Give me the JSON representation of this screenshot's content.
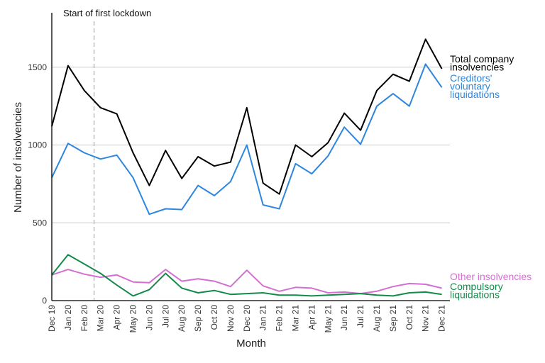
{
  "chart_data": {
    "type": "line",
    "xlabel": "Month",
    "ylabel": "Number of insolvencies",
    "ylim": [
      0,
      1850
    ],
    "yticks": [
      0,
      500,
      1000,
      1500
    ],
    "grid": "horizontal",
    "annotation": {
      "text": "Start of first lockdown",
      "x_category": "Feb 20 / Mar 20"
    },
    "categories": [
      "Dec 19",
      "Jan 20",
      "Feb 20",
      "Mar 20",
      "Apr 20",
      "May 20",
      "Jun 20",
      "Jul 20",
      "Aug 20",
      "Sep 20",
      "Oct 20",
      "Nov 20",
      "Dec 20",
      "Jan 21",
      "Feb 21",
      "Mar 21",
      "Apr 21",
      "May 21",
      "Jun 21",
      "Jul 21",
      "Aug 21",
      "Sep 21",
      "Oct 21",
      "Nov 21",
      "Dec 21"
    ],
    "series": [
      {
        "name": "Total company insolvencies",
        "label_lines": [
          "Total company",
          "insolvencies"
        ],
        "color": "#000000",
        "values": [
          1120,
          1510,
          1350,
          1240,
          1200,
          950,
          740,
          965,
          785,
          925,
          865,
          890,
          1240,
          755,
          685,
          1000,
          925,
          1015,
          1205,
          1095,
          1350,
          1455,
          1410,
          1680,
          1490
        ]
      },
      {
        "name": "Creditors' voluntary liquidations",
        "label_lines": [
          "Creditors'",
          "voluntary",
          "liquidations"
        ],
        "color": "#2e86de",
        "values": [
          790,
          1010,
          950,
          910,
          935,
          790,
          555,
          590,
          585,
          740,
          675,
          765,
          1000,
          615,
          590,
          880,
          815,
          930,
          1115,
          1005,
          1250,
          1330,
          1250,
          1520,
          1370
        ]
      },
      {
        "name": "Other insolvencies",
        "label_lines": [
          "Other insolvencies"
        ],
        "color": "#d46fd1",
        "values": [
          165,
          200,
          170,
          150,
          165,
          120,
          115,
          200,
          125,
          140,
          125,
          90,
          195,
          95,
          60,
          85,
          80,
          50,
          55,
          45,
          60,
          90,
          110,
          105,
          80
        ]
      },
      {
        "name": "Compulsory liquidations",
        "label_lines": [
          "Compulsory",
          "liquidations"
        ],
        "color": "#138a4a",
        "values": [
          165,
          295,
          235,
          175,
          100,
          30,
          70,
          175,
          80,
          50,
          65,
          40,
          45,
          50,
          35,
          35,
          30,
          35,
          40,
          45,
          35,
          30,
          50,
          55,
          40
        ]
      }
    ]
  }
}
